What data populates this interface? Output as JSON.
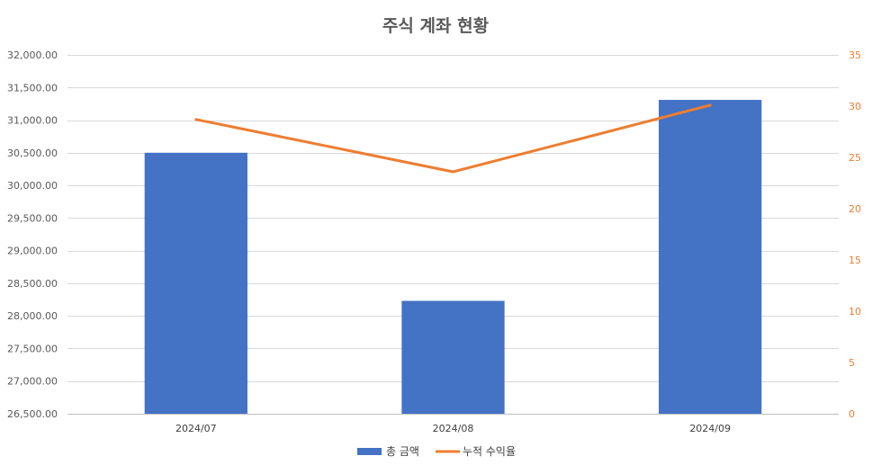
{
  "chart_data": {
    "type": "bar",
    "title": "주식 계좌 현황",
    "categories": [
      "2024/07",
      "2024/08",
      "2024/09"
    ],
    "series": [
      {
        "name": "총 금액",
        "type": "bar",
        "axis": "left",
        "color": "#4472C4",
        "values": [
          30500,
          28230,
          31310
        ]
      },
      {
        "name": "누적 수익율",
        "type": "line",
        "axis": "right",
        "color": "#ED7D31",
        "values": [
          28.7,
          23.6,
          30.1
        ]
      }
    ],
    "y_left": {
      "ylim": [
        26500,
        32000
      ],
      "ticks": [
        26500,
        27000,
        27500,
        28000,
        28500,
        29000,
        29500,
        30000,
        30500,
        31000,
        31500,
        32000
      ],
      "tick_labels": [
        "26,500.00",
        "27,000.00",
        "27,500.00",
        "28,000.00",
        "28,500.00",
        "29,000.00",
        "29,500.00",
        "30,000.00",
        "30,500.00",
        "31,000.00",
        "31,500.00",
        "32,000.00"
      ]
    },
    "y_right": {
      "ylim": [
        0,
        35
      ],
      "ticks": [
        0,
        5,
        10,
        15,
        20,
        25,
        30,
        35
      ],
      "tick_labels": [
        "0",
        "5",
        "10",
        "15",
        "20",
        "25",
        "30",
        "35"
      ]
    },
    "grid": true,
    "legend": "bottom"
  }
}
